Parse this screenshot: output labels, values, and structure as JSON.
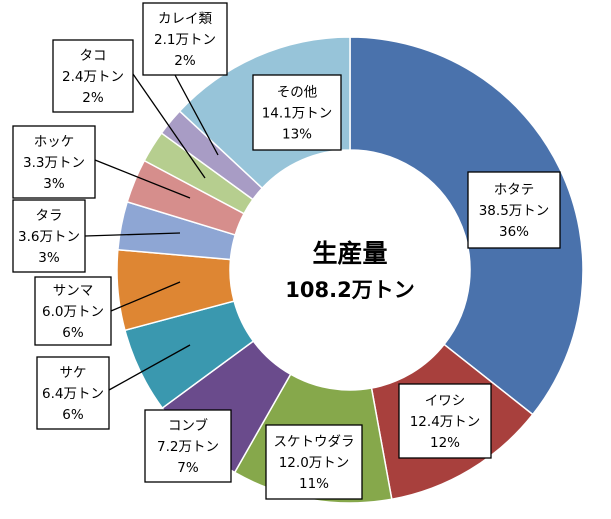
{
  "chart_data": {
    "type": "pie",
    "donut": true,
    "center_label": {
      "line1": "生産量",
      "line2": "108.2万トン"
    },
    "slices": [
      {
        "name": "ホタテ",
        "value_label": "38.5万トン",
        "value": 38.5,
        "percent": "36%",
        "color": "#4A72AC"
      },
      {
        "name": "イワシ",
        "value_label": "12.4万トン",
        "value": 12.4,
        "percent": "12%",
        "color": "#A8403D"
      },
      {
        "name": "スケトウダラ",
        "value_label": "12.0万トン",
        "value": 12.0,
        "percent": "11%",
        "color": "#86A84B"
      },
      {
        "name": "コンブ",
        "value_label": "7.2万トン",
        "value": 7.2,
        "percent": "7%",
        "color": "#6A4B8C"
      },
      {
        "name": "サケ",
        "value_label": "6.4万トン",
        "value": 6.4,
        "percent": "6%",
        "color": "#3A98AF"
      },
      {
        "name": "サンマ",
        "value_label": "6.0万トン",
        "value": 6.0,
        "percent": "6%",
        "color": "#DE8633"
      },
      {
        "name": "タラ",
        "value_label": "3.6万トン",
        "value": 3.6,
        "percent": "3%",
        "color": "#8EA6D4"
      },
      {
        "name": "ホッケ",
        "value_label": "3.3万トン",
        "value": 3.3,
        "percent": "3%",
        "color": "#D68E8C"
      },
      {
        "name": "タコ",
        "value_label": "2.4万トン",
        "value": 2.4,
        "percent": "2%",
        "color": "#B6CE8F"
      },
      {
        "name": "カレイ類",
        "value_label": "2.1万トン",
        "value": 2.1,
        "percent": "2%",
        "color": "#A89CC5"
      },
      {
        "name": "その他",
        "value_label": "14.1万トン",
        "value": 14.1,
        "percent": "13%",
        "color": "#97C4D9"
      }
    ]
  }
}
